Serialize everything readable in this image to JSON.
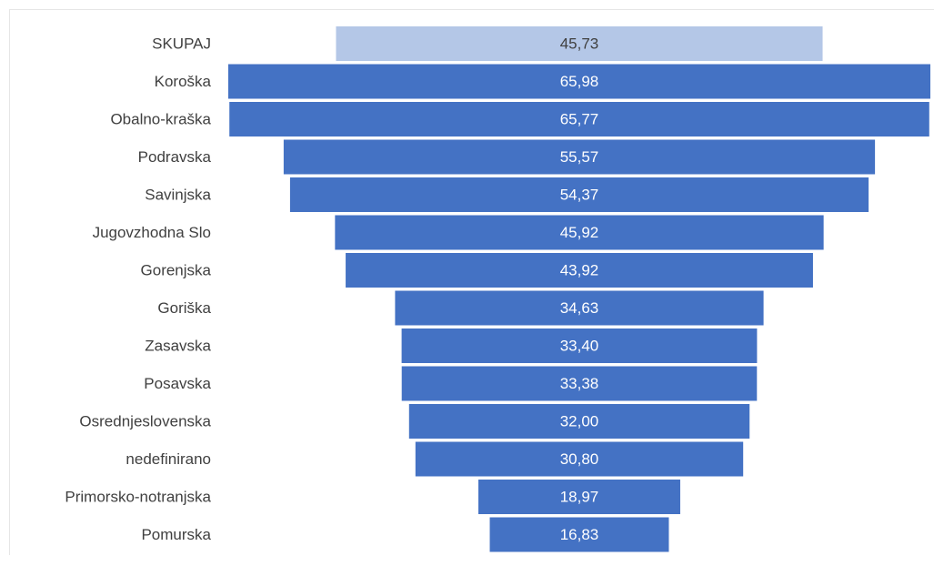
{
  "chart_data": {
    "type": "bar",
    "orientation": "horizontal",
    "style": "funnel",
    "categories": [
      "SKUPAJ",
      "Koroška",
      "Obalno-kraška",
      "Podravska",
      "Savinjska",
      "Jugovzhodna Slo",
      "Gorenjska",
      "Goriška",
      "Zasavska",
      "Posavska",
      "Osrednjeslovenska",
      "nedefinirano",
      "Primorsko-notranjska",
      "Pomurska"
    ],
    "values": [
      45.73,
      65.98,
      65.77,
      55.57,
      54.37,
      45.92,
      43.92,
      34.63,
      33.4,
      33.38,
      32.0,
      30.8,
      18.97,
      16.83
    ],
    "value_labels": [
      "45,73",
      "65,98",
      "65,77",
      "55,57",
      "54,37",
      "45,92",
      "43,92",
      "34,63",
      "33,40",
      "33,38",
      "32,00",
      "30,80",
      "18,97",
      "16,83"
    ],
    "title": "",
    "xlabel": "",
    "ylabel": "",
    "grid": false,
    "legend": "none",
    "colors": {
      "bar": "#4472c4",
      "highlight_bar": "#b4c7e7",
      "value_text": "#ffffff",
      "highlight_value_text": "#404040",
      "category_text": "#404040"
    },
    "highlight_index": 0
  }
}
